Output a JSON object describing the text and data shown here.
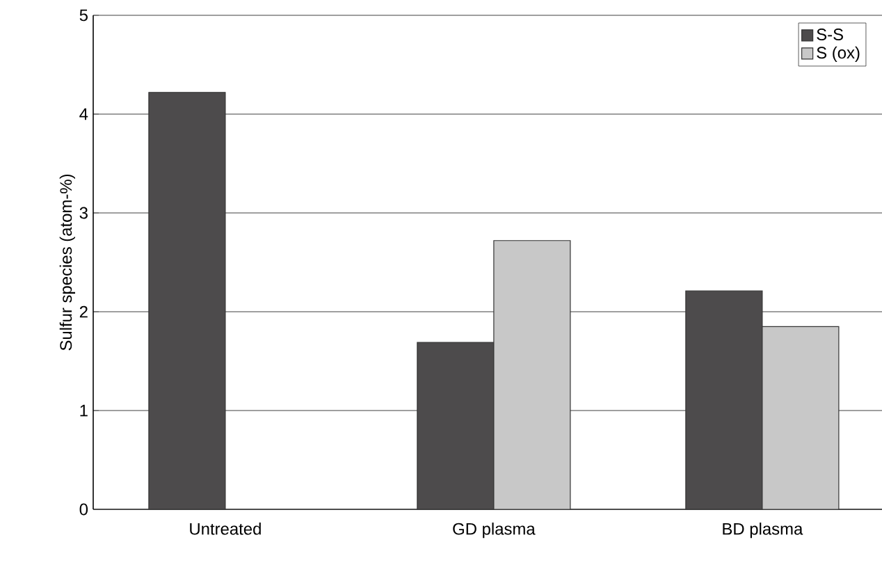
{
  "chart_data": {
    "type": "bar",
    "ylabel": "Sulfur species (atom-%)",
    "categories": [
      "Untreated",
      "GD plasma",
      "BD plasma"
    ],
    "series": [
      {
        "name": "S-S",
        "color": "#4d4b4c",
        "values": [
          4.22,
          1.69,
          2.21
        ]
      },
      {
        "name": "S (ox)",
        "color": "#c8c8c8",
        "values": [
          null,
          2.72,
          1.85
        ]
      }
    ],
    "ylim": [
      0,
      5
    ],
    "yticks": [
      0,
      1,
      2,
      3,
      4,
      5
    ],
    "grid": "y",
    "legend": "top right"
  }
}
